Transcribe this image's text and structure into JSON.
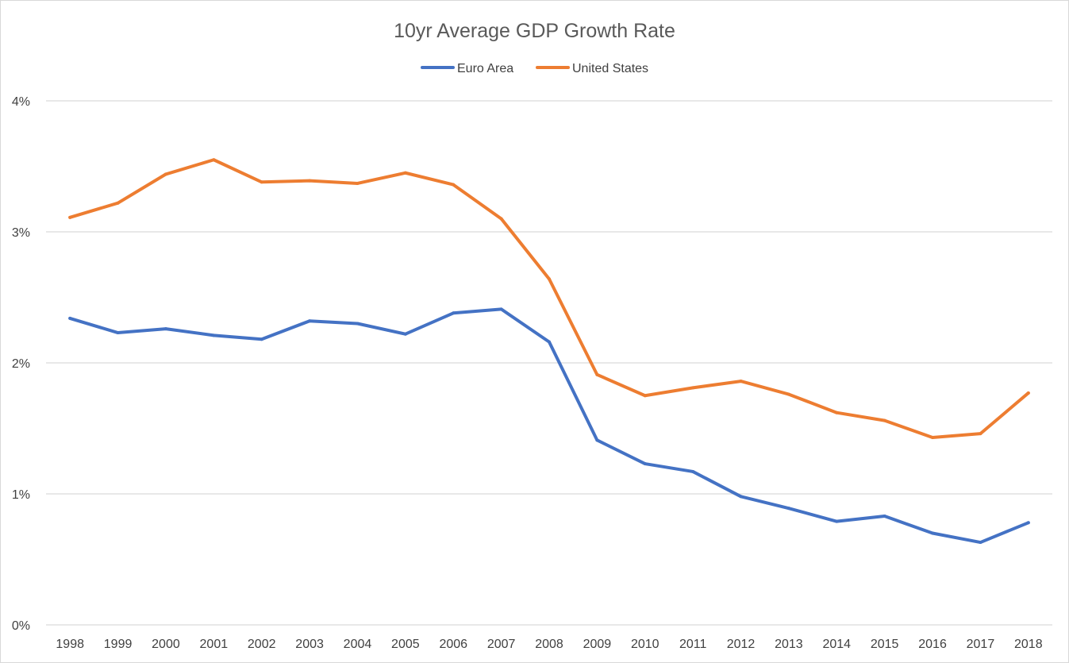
{
  "chart_data": {
    "type": "line",
    "title": "10yr Average GDP Growth Rate",
    "xlabel": "",
    "ylabel": "",
    "categories": [
      "1998",
      "1999",
      "2000",
      "2001",
      "2002",
      "2003",
      "2004",
      "2005",
      "2006",
      "2007",
      "2008",
      "2009",
      "2010",
      "2011",
      "2012",
      "2013",
      "2014",
      "2015",
      "2016",
      "2017",
      "2018"
    ],
    "ylim": [
      0,
      4
    ],
    "yticks": [
      {
        "value": 0,
        "label": "0%"
      },
      {
        "value": 1,
        "label": "1%"
      },
      {
        "value": 2,
        "label": "2%"
      },
      {
        "value": 3,
        "label": "3%"
      },
      {
        "value": 4,
        "label": "4%"
      }
    ],
    "grid": true,
    "legend_position": "top",
    "series": [
      {
        "name": "Euro Area",
        "color": "#4472c4",
        "values": [
          2.34,
          2.23,
          2.26,
          2.21,
          2.18,
          2.32,
          2.3,
          2.22,
          2.38,
          2.41,
          2.16,
          1.41,
          1.23,
          1.17,
          0.98,
          0.89,
          0.79,
          0.83,
          0.7,
          0.63,
          0.78
        ]
      },
      {
        "name": "United States",
        "color": "#ed7d31",
        "values": [
          3.11,
          3.22,
          3.44,
          3.55,
          3.38,
          3.39,
          3.37,
          3.45,
          3.36,
          3.1,
          2.64,
          1.91,
          1.75,
          1.81,
          1.86,
          1.76,
          1.62,
          1.56,
          1.43,
          1.46,
          1.77
        ]
      }
    ]
  }
}
